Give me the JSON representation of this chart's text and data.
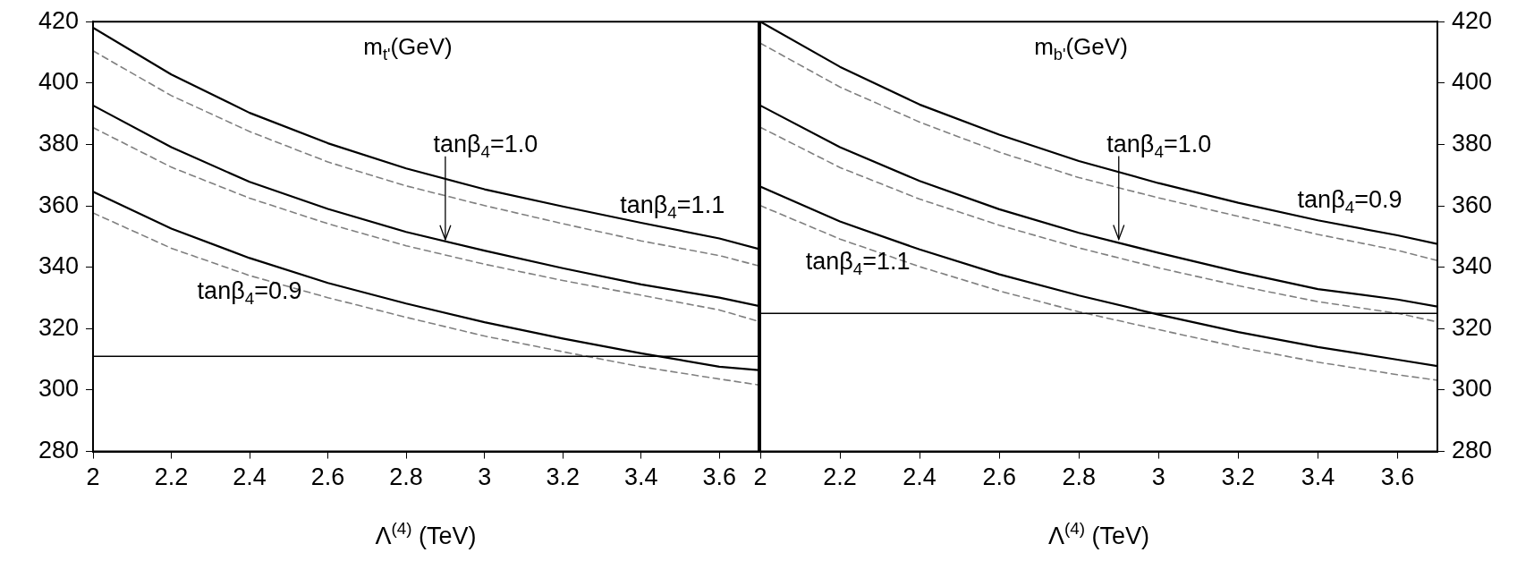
{
  "chart_data": [
    {
      "type": "line",
      "title": "m$_{t'}$(GeV)",
      "xlabel": "Λ$^{(4)}$ (TeV)",
      "x": [
        2,
        2.2,
        2.4,
        2.6,
        2.8,
        3.0,
        3.2,
        3.4,
        3.6,
        3.7
      ],
      "series": [
        {
          "color": "#000000",
          "line_style": "solid",
          "values": [
            418,
            402.8,
            390.3,
            380.4,
            372.2,
            365.4,
            359.8,
            354.5,
            349.4,
            346
          ]
        },
        {
          "color": "#808080",
          "line_style": "dashed",
          "values": [
            410.5,
            395.9,
            384.2,
            374.3,
            366.5,
            360.1,
            354.2,
            348.6,
            343.8,
            340.5
          ]
        },
        {
          "color": "#000000",
          "line_style": "solid",
          "values": [
            392.7,
            379.1,
            367.8,
            359,
            351.5,
            345.4,
            339.7,
            334.4,
            330.1,
            327.4
          ]
        },
        {
          "color": "#808080",
          "line_style": "dashed",
          "values": [
            385.5,
            372.6,
            362.5,
            354.2,
            347,
            341,
            335.7,
            330.9,
            326.1,
            322.4
          ]
        },
        {
          "color": "#000000",
          "line_style": "solid",
          "values": [
            364.6,
            352.6,
            343,
            334.9,
            328.2,
            322.1,
            316.8,
            312,
            307.6,
            306.5
          ]
        },
        {
          "color": "#808080",
          "line_style": "dashed",
          "values": [
            357.7,
            346.2,
            337.3,
            330.1,
            323.7,
            317.6,
            312.5,
            307.6,
            303.6,
            301.7
          ]
        }
      ],
      "marker": "none",
      "grid": false,
      "legend": false,
      "xlim": [
        2,
        3.7
      ],
      "xticks": [
        2,
        2.2,
        2.4,
        2.6,
        2.8,
        3,
        3.2,
        3.4,
        3.6
      ],
      "ylim": [
        280,
        420
      ],
      "yticks": [
        280,
        300,
        320,
        340,
        360,
        380,
        400,
        420
      ],
      "ref_lines": [
        {
          "axis": "y",
          "value": 311,
          "color": "#000000"
        }
      ],
      "annotations": [
        {
          "text": "tanβ$_{4}$=1.0",
          "x": 2.9,
          "y": 349
        },
        {
          "text": "tanβ$_{4}$=1.1",
          "x": 3.48,
          "y": 352.5
        },
        {
          "text": "tanβ$_{4}$=0.9",
          "x": 2.4,
          "y": 343
        }
      ]
    },
    {
      "type": "line",
      "title": "m$_{b'}$(GeV)",
      "xlabel": "Λ$^{(4)}$ (TeV)",
      "x": [
        2,
        2.2,
        2.4,
        2.6,
        2.8,
        3.0,
        3.2,
        3.4,
        3.6,
        3.7
      ],
      "series": [
        {
          "color": "#000000",
          "line_style": "solid",
          "values": [
            420,
            405.3,
            393,
            383.2,
            374.6,
            367.4,
            361,
            355.3,
            350.4,
            347.6
          ]
        },
        {
          "color": "#808080",
          "line_style": "dashed",
          "values": [
            413,
            398.7,
            387.3,
            377.5,
            369.2,
            362.6,
            356.6,
            350.7,
            345.5,
            342.2
          ]
        },
        {
          "color": "#000000",
          "line_style": "solid",
          "values": [
            392.7,
            379.1,
            368.1,
            358.9,
            351.2,
            344.7,
            338.5,
            332.9,
            329.5,
            327.2
          ]
        },
        {
          "color": "#808080",
          "line_style": "dashed",
          "values": [
            385.6,
            372.5,
            362.2,
            353.7,
            346.3,
            339.8,
            334,
            328.8,
            325,
            322.2
          ]
        },
        {
          "color": "#000000",
          "line_style": "solid",
          "values": [
            366.3,
            354.9,
            345.8,
            337.7,
            330.8,
            324.6,
            318.9,
            314,
            309.9,
            307.8
          ]
        },
        {
          "color": "#808080",
          "line_style": "dashed",
          "values": [
            360.1,
            349.2,
            340.2,
            332.3,
            325.5,
            319.7,
            314,
            309.1,
            305,
            303.2
          ]
        }
      ],
      "marker": "none",
      "grid": false,
      "legend": false,
      "xlim": [
        2,
        3.7
      ],
      "xticks": [
        2,
        2.2,
        2.4,
        2.6,
        2.8,
        3,
        3.2,
        3.4,
        3.6
      ],
      "ylim": [
        280,
        420
      ],
      "yticks": [
        280,
        300,
        320,
        340,
        360,
        380,
        400,
        420
      ],
      "ref_lines": [
        {
          "axis": "y",
          "value": 325,
          "color": "#000000"
        }
      ],
      "annotations": [
        {
          "text": "tanβ$_{4}$=1.0",
          "x": 2.9,
          "y": 349.1
        },
        {
          "text": "tanβ$_{4}$=0.9",
          "x": 3.48,
          "y": 354.2
        },
        {
          "text": "tanβ$_{4}$=1.1",
          "x": 2.245,
          "y": 352.5
        }
      ]
    }
  ]
}
